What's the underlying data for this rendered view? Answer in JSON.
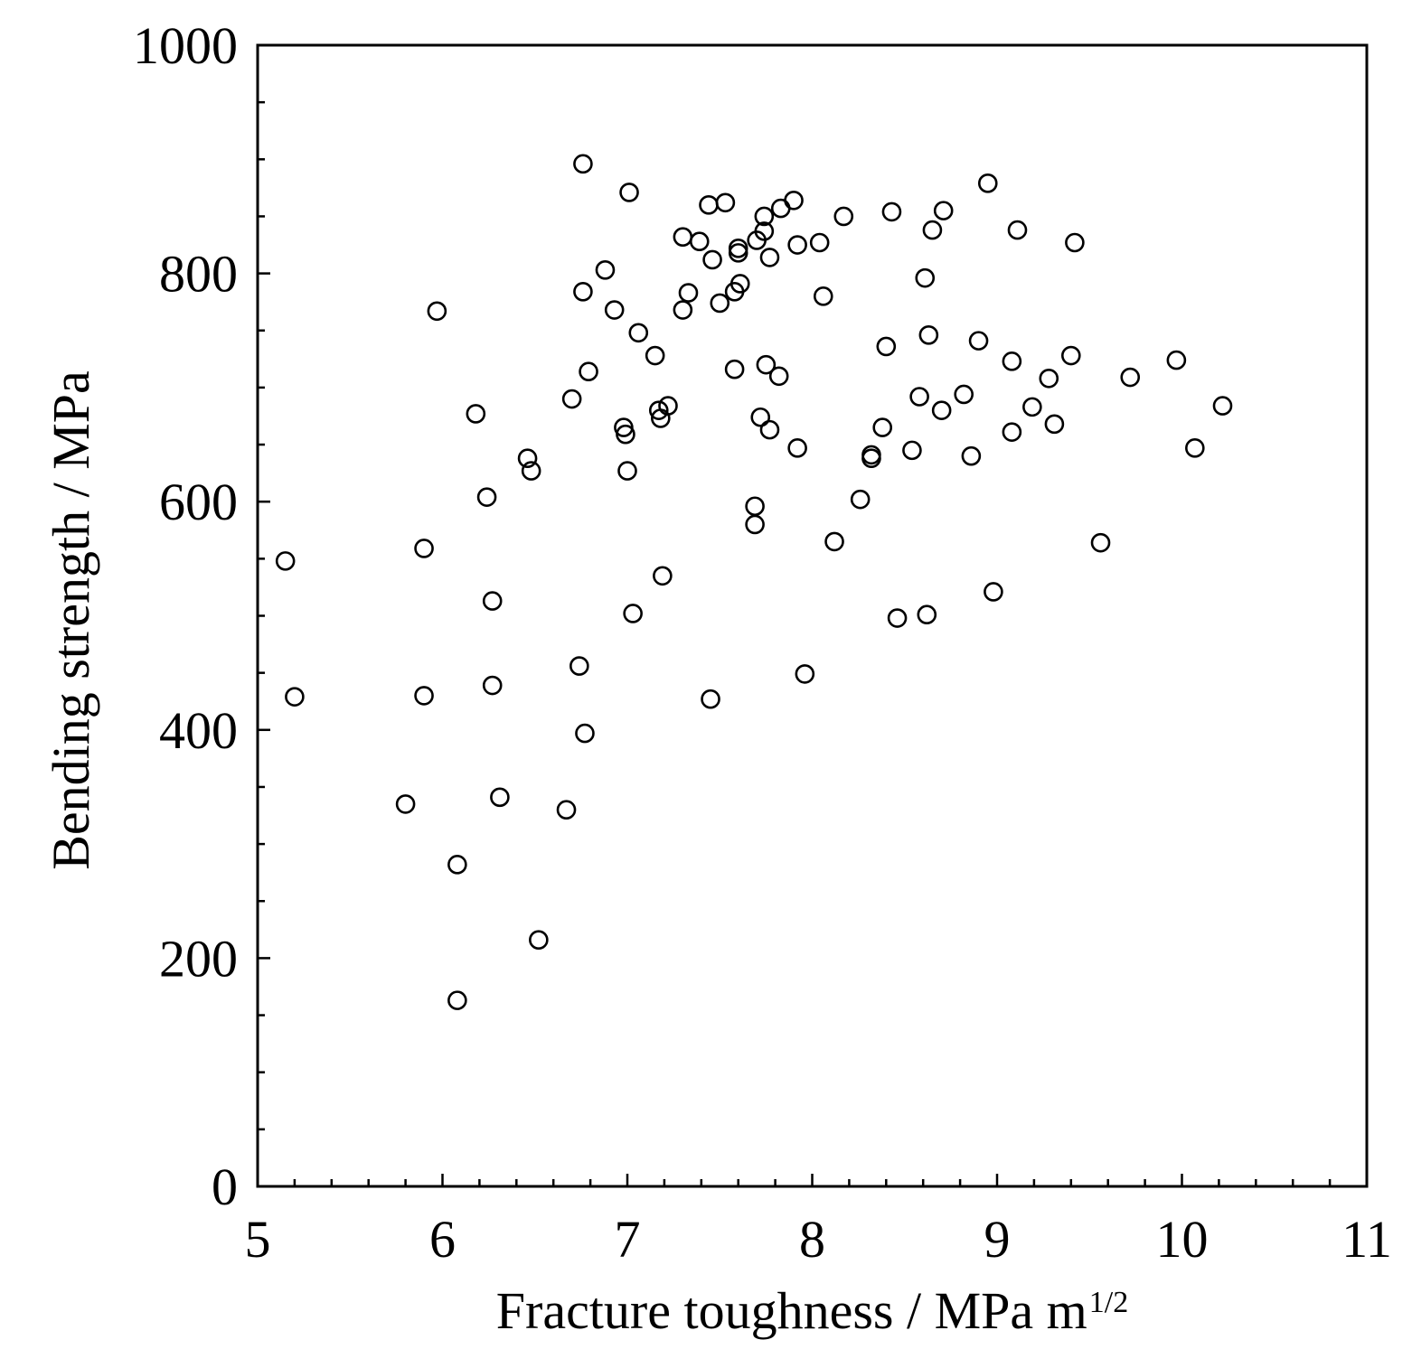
{
  "chart_data": {
    "type": "scatter",
    "title": "",
    "xlabel": "Fracture toughness / MPa m",
    "xlabel_superscript": "1/2",
    "ylabel": "Bending strength / MPa",
    "xlim": [
      5,
      11
    ],
    "ylim": [
      0,
      1000
    ],
    "xticks": [
      5,
      6,
      7,
      8,
      9,
      10,
      11
    ],
    "yticks": [
      0,
      200,
      400,
      600,
      800,
      1000
    ],
    "x_minor_step": 0.2,
    "y_minor_step": 50,
    "grid": false,
    "legend": "none",
    "marker": "open-circle",
    "color": "#000000",
    "series": [
      {
        "points": [
          [
            5.15,
            548
          ],
          [
            5.2,
            429
          ],
          [
            5.8,
            335
          ],
          [
            5.9,
            559
          ],
          [
            5.9,
            430
          ],
          [
            5.97,
            767
          ],
          [
            6.08,
            282
          ],
          [
            6.08,
            163
          ],
          [
            6.18,
            677
          ],
          [
            6.24,
            604
          ],
          [
            6.27,
            513
          ],
          [
            6.27,
            439
          ],
          [
            6.31,
            341
          ],
          [
            6.46,
            638
          ],
          [
            6.48,
            627
          ],
          [
            6.52,
            216
          ],
          [
            6.67,
            330
          ],
          [
            6.7,
            690
          ],
          [
            6.74,
            456
          ],
          [
            6.76,
            896
          ],
          [
            6.76,
            784
          ],
          [
            6.77,
            397
          ],
          [
            6.79,
            714
          ],
          [
            6.88,
            803
          ],
          [
            6.93,
            768
          ],
          [
            6.98,
            665
          ],
          [
            6.99,
            659
          ],
          [
            7.0,
            627
          ],
          [
            7.01,
            871
          ],
          [
            7.03,
            502
          ],
          [
            7.06,
            748
          ],
          [
            7.15,
            728
          ],
          [
            7.17,
            680
          ],
          [
            7.18,
            673
          ],
          [
            7.19,
            535
          ],
          [
            7.22,
            684
          ],
          [
            7.3,
            832
          ],
          [
            7.3,
            768
          ],
          [
            7.33,
            783
          ],
          [
            7.39,
            828
          ],
          [
            7.44,
            860
          ],
          [
            7.45,
            427
          ],
          [
            7.46,
            812
          ],
          [
            7.5,
            774
          ],
          [
            7.53,
            862
          ],
          [
            7.58,
            784
          ],
          [
            7.58,
            716
          ],
          [
            7.6,
            822
          ],
          [
            7.6,
            818
          ],
          [
            7.61,
            791
          ],
          [
            7.69,
            596
          ],
          [
            7.69,
            580
          ],
          [
            7.7,
            829
          ],
          [
            7.72,
            674
          ],
          [
            7.74,
            850
          ],
          [
            7.74,
            837
          ],
          [
            7.75,
            720
          ],
          [
            7.77,
            663
          ],
          [
            7.77,
            814
          ],
          [
            7.82,
            710
          ],
          [
            7.83,
            857
          ],
          [
            7.9,
            864
          ],
          [
            7.92,
            647
          ],
          [
            7.92,
            825
          ],
          [
            7.96,
            449
          ],
          [
            8.04,
            827
          ],
          [
            8.06,
            780
          ],
          [
            8.12,
            565
          ],
          [
            8.17,
            850
          ],
          [
            8.26,
            602
          ],
          [
            8.32,
            641
          ],
          [
            8.32,
            638
          ],
          [
            8.38,
            665
          ],
          [
            8.4,
            736
          ],
          [
            8.43,
            854
          ],
          [
            8.46,
            498
          ],
          [
            8.54,
            645
          ],
          [
            8.58,
            692
          ],
          [
            8.61,
            796
          ],
          [
            8.62,
            501
          ],
          [
            8.63,
            746
          ],
          [
            8.65,
            838
          ],
          [
            8.7,
            680
          ],
          [
            8.71,
            855
          ],
          [
            8.82,
            694
          ],
          [
            8.86,
            640
          ],
          [
            8.9,
            741
          ],
          [
            8.95,
            879
          ],
          [
            8.98,
            521
          ],
          [
            9.08,
            723
          ],
          [
            9.08,
            661
          ],
          [
            9.11,
            838
          ],
          [
            9.19,
            683
          ],
          [
            9.28,
            708
          ],
          [
            9.31,
            668
          ],
          [
            9.4,
            728
          ],
          [
            9.42,
            827
          ],
          [
            9.56,
            564
          ],
          [
            9.72,
            709
          ],
          [
            9.97,
            724
          ],
          [
            10.07,
            647
          ],
          [
            10.22,
            684
          ]
        ]
      }
    ]
  }
}
